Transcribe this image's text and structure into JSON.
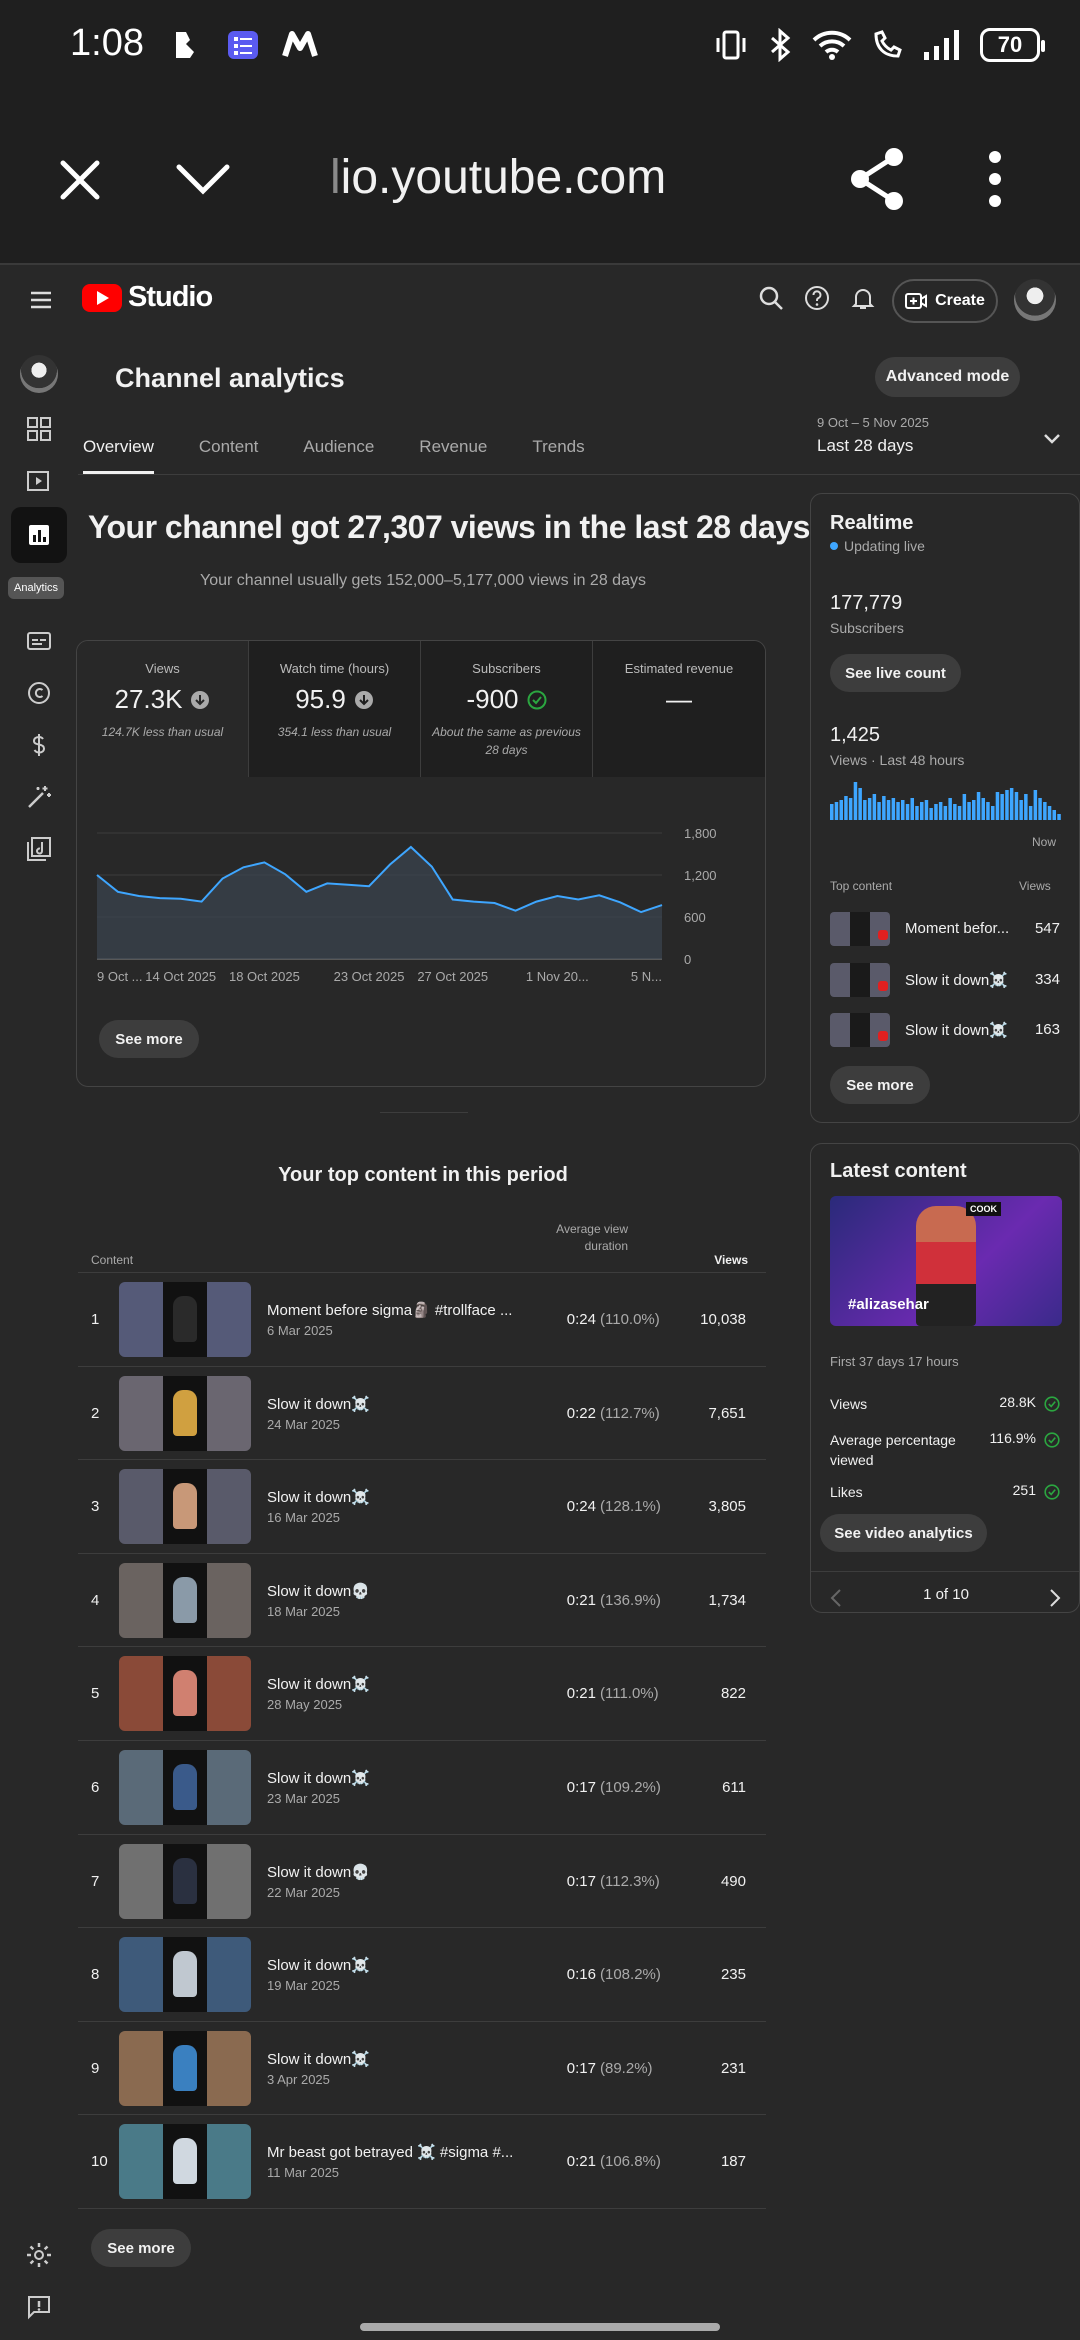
{
  "status_bar": {
    "time": "1:08",
    "battery": "70"
  },
  "browser": {
    "url_faded": "l",
    "url": "io.youtube.com"
  },
  "header": {
    "logo_text": "Studio",
    "create_label": "Create"
  },
  "rail": {
    "active_label": "Analytics"
  },
  "page": {
    "title": "Channel analytics",
    "advanced_mode": "Advanced mode",
    "tabs": [
      "Overview",
      "Content",
      "Audience",
      "Revenue",
      "Trends"
    ],
    "date_range_small": "9 Oct – 5 Nov 2025",
    "date_range_main": "Last 28 days",
    "headline": "Your channel got 27,307 views in the last 28 days",
    "subheadline": "Your channel usually gets 152,000–5,177,000 views in 28 days"
  },
  "metrics": [
    {
      "label": "Views",
      "value": "27.3K",
      "note": "124.7K less than usual",
      "status": "down"
    },
    {
      "label": "Watch time (hours)",
      "value": "95.9",
      "note": "354.1 less than usual",
      "status": "down"
    },
    {
      "label": "Subscribers",
      "value": "-900",
      "note": "About the same as previous 28 days",
      "status": "ok"
    },
    {
      "label": "Estimated revenue",
      "value": "—",
      "note": "",
      "status": ""
    }
  ],
  "chart_data": {
    "type": "area",
    "x_tick_labels": [
      "9 Oct ...",
      "14 Oct 2025",
      "18 Oct 2025",
      "23 Oct 2025",
      "27 Oct 2025",
      "1 Nov 20...",
      "5 N..."
    ],
    "y_ticks": [
      0,
      600,
      1200,
      1800
    ],
    "ylim": [
      0,
      1800
    ],
    "values": [
      1200,
      960,
      900,
      870,
      860,
      820,
      1150,
      1310,
      1380,
      1210,
      960,
      1080,
      1060,
      1040,
      1350,
      1600,
      1320,
      850,
      820,
      800,
      690,
      820,
      900,
      850,
      910,
      810,
      670,
      770
    ],
    "colors": {
      "line": "#3ea6ff",
      "fill": "#3a4450"
    }
  },
  "see_more": "See more",
  "top_content": {
    "title": "Your top content in this period",
    "col_content": "Content",
    "col_avd": "Average view duration",
    "col_views": "Views",
    "rows": [
      {
        "rank": "1",
        "title": "Moment before sigma🗿 #trollface ...",
        "date": "6 Mar 2025",
        "duration": "0:24",
        "pct": "(110.0%)",
        "views": "10,038",
        "bg": "#555a78",
        "fig": "#2a2a2a"
      },
      {
        "rank": "2",
        "title": "Slow it down☠️",
        "date": "24 Mar 2025",
        "duration": "0:22",
        "pct": "(112.7%)",
        "views": "7,651",
        "bg": "#6a6670",
        "fig": "#d0a040"
      },
      {
        "rank": "3",
        "title": "Slow it down☠️",
        "date": "16 Mar 2025",
        "duration": "0:24",
        "pct": "(128.1%)",
        "views": "3,805",
        "bg": "#595a6a",
        "fig": "#c89878"
      },
      {
        "rank": "4",
        "title": "Slow it down💀",
        "date": "18 Mar 2025",
        "duration": "0:21",
        "pct": "(136.9%)",
        "views": "1,734",
        "bg": "#6a6360",
        "fig": "#8a9aa8"
      },
      {
        "rank": "5",
        "title": "Slow it down☠️",
        "date": "28 May 2025",
        "duration": "0:21",
        "pct": "(111.0%)",
        "views": "822",
        "bg": "#8a4a38",
        "fig": "#d08070"
      },
      {
        "rank": "6",
        "title": "Slow it down☠️",
        "date": "23 Mar 2025",
        "duration": "0:17",
        "pct": "(109.2%)",
        "views": "611",
        "bg": "#5a6a78",
        "fig": "#3a5a8a"
      },
      {
        "rank": "7",
        "title": "Slow it down💀",
        "date": "22 Mar 2025",
        "duration": "0:17",
        "pct": "(112.3%)",
        "views": "490",
        "bg": "#707070",
        "fig": "#2a3040"
      },
      {
        "rank": "8",
        "title": "Slow it down☠️",
        "date": "19 Mar 2025",
        "duration": "0:16",
        "pct": "(108.2%)",
        "views": "235",
        "bg": "#3e5a7a",
        "fig": "#c0c8d0"
      },
      {
        "rank": "9",
        "title": "Slow it down☠️",
        "date": "3 Apr 2025",
        "duration": "0:17",
        "pct": "(89.2%)",
        "views": "231",
        "bg": "#8a6a50",
        "fig": "#3a80c0"
      },
      {
        "rank": "10",
        "title": "Mr beast got betrayed ☠️ #sigma #...",
        "date": "11 Mar 2025",
        "duration": "0:21",
        "pct": "(106.8%)",
        "views": "187",
        "bg": "#4a7a88",
        "fig": "#d0d8e0"
      }
    ]
  },
  "realtime": {
    "title": "Realtime",
    "live": "Updating live",
    "subs": "177,779",
    "subs_label": "Subscribers",
    "live_count_btn": "See live count",
    "views": "1,425",
    "views_label": "Views · Last 48 hours",
    "now_label": "Now",
    "bars": [
      40,
      45,
      50,
      60,
      55,
      95,
      80,
      50,
      55,
      65,
      45,
      60,
      50,
      55,
      45,
      50,
      40,
      55,
      35,
      45,
      50,
      30,
      40,
      45,
      35,
      55,
      40,
      35,
      65,
      45,
      50,
      70,
      55,
      45,
      35,
      70,
      65,
      75,
      80,
      70,
      50,
      65,
      35,
      75,
      55,
      45,
      35,
      25,
      15
    ],
    "top_content_label": "Top content",
    "views_header": "Views",
    "items": [
      {
        "name": "Moment befor...",
        "views": "547"
      },
      {
        "name": "Slow it down☠️",
        "views": "334"
      },
      {
        "name": "Slow it down☠️",
        "views": "163"
      }
    ]
  },
  "latest": {
    "title": "Latest content",
    "thumb_tag": "#alizasehar",
    "thumb_sign": "COOK",
    "period": "First 37 days 17 hours",
    "rows": [
      {
        "label": "Views",
        "value": "28.8K"
      },
      {
        "label": "Average percentage viewed",
        "value": "116.9%"
      },
      {
        "label": "Likes",
        "value": "251"
      }
    ],
    "btn": "See video analytics",
    "pager": "1 of 10"
  }
}
